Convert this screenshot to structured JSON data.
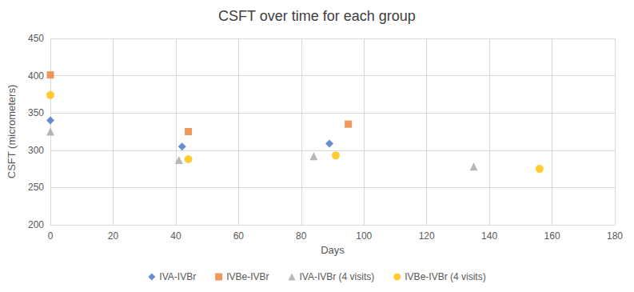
{
  "chart_data": {
    "type": "scatter",
    "title": "CSFT over time for each group",
    "x_label": "Days",
    "y_label": "CSFT (micrometers)",
    "xlim": [
      0,
      180
    ],
    "xticks": [
      0,
      20,
      40,
      60,
      80,
      100,
      120,
      140,
      160,
      180
    ],
    "ylim": [
      200,
      450
    ],
    "yticks": [
      200,
      250,
      300,
      350,
      400,
      450
    ],
    "grid": true,
    "legend": "bottom",
    "series": [
      {
        "name": "IVA-IVBr",
        "color": "#4472c4",
        "marker": "diamond",
        "x": [
          0,
          42,
          89
        ],
        "values": [
          340,
          305,
          309
        ]
      },
      {
        "name": "IVBe-IVBr",
        "color": "#ed7d31",
        "marker": "square",
        "x": [
          0,
          44,
          95
        ],
        "values": [
          401,
          325,
          335
        ]
      },
      {
        "name": "IVA-IVBr (4 visits)",
        "color": "#a5a5a5",
        "marker": "triangle",
        "x": [
          0,
          41,
          84,
          135
        ],
        "values": [
          325,
          287,
          292,
          278
        ]
      },
      {
        "name": "IVBe-IVBr (4 visits)",
        "color": "#ffc000",
        "marker": "circle",
        "x": [
          0,
          44,
          91,
          156
        ],
        "values": [
          374,
          288,
          293,
          275
        ]
      }
    ]
  }
}
